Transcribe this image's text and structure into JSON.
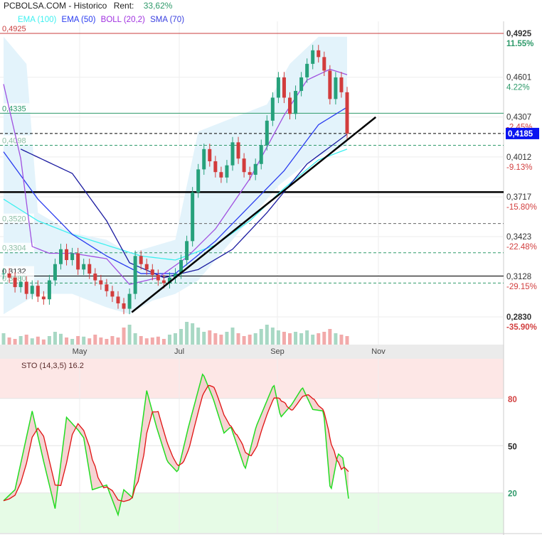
{
  "header": {
    "title": "PCBOLSA.COM - Historico",
    "rent_label": "Rent:",
    "rent_value": "33,62%"
  },
  "legend": [
    {
      "label": "EMA (100)",
      "color": "#3ef0f0"
    },
    {
      "label": "EMA (50)",
      "color": "#2a3cf0"
    },
    {
      "label": "BOLL (20,2)",
      "color": "#a030e0"
    },
    {
      "label": "SMA (70)",
      "color": "#3a40e0"
    }
  ],
  "price_axis": [
    {
      "price": "0,4925",
      "pct": "11.55%",
      "value": 0.4925,
      "pct_color": "#2e9a6a",
      "bold": true
    },
    {
      "price": "0,4601",
      "pct": "4.22%",
      "value": 0.4601,
      "pct_color": "#2e9a6a"
    },
    {
      "price": "0,4307",
      "pct": "-2.45%",
      "value": 0.4307,
      "pct_color": "#d24040"
    },
    {
      "price": "0,4012",
      "pct": "-9.13%",
      "value": 0.4012,
      "pct_color": "#d24040"
    },
    {
      "price": "0,3717",
      "pct": "-15.80%",
      "value": 0.3717,
      "pct_color": "#d24040"
    },
    {
      "price": "0,3423",
      "pct": "-22.48%",
      "value": 0.3423,
      "pct_color": "#d24040"
    },
    {
      "price": "0,3128",
      "pct": "-29.15%",
      "value": 0.3128,
      "pct_color": "#d24040"
    },
    {
      "price": "0,2830",
      "pct": "-35.90%",
      "value": 0.283,
      "pct_color": "#d24040",
      "bold": true
    }
  ],
  "current_price": {
    "label": "0,4185",
    "value": 0.4185,
    "color": "#0a14f0"
  },
  "levels": [
    {
      "label": "0,4925",
      "value": 0.4925,
      "style": "solid",
      "color": "#c83c3c",
      "label_color": "#c83c3c"
    },
    {
      "label": "0,4335",
      "value": 0.4335,
      "style": "solid",
      "color": "#2e9a6a",
      "label_color": "#2e9a6a"
    },
    {
      "label": "",
      "value": 0.4185,
      "style": "dashed",
      "color": "#000000"
    },
    {
      "label": "0,4098",
      "value": 0.4098,
      "style": "dashed",
      "color": "#2e9a6a",
      "label_color": "#8fbfa5"
    },
    {
      "label": "",
      "value": 0.3752,
      "style": "thick",
      "color": "#000000"
    },
    {
      "label": "0,3520",
      "value": 0.352,
      "style": "dashed",
      "color": "#666666",
      "label_color": "#8fbfa5"
    },
    {
      "label": "0,3304",
      "value": 0.3304,
      "style": "dashed",
      "color": "#2e9a6a",
      "label_color": "#8fbfa5"
    },
    {
      "label": "0,3132",
      "value": 0.3132,
      "style": "solid",
      "color": "#000000",
      "label_color": "#333333"
    },
    {
      "label": "0,3080",
      "value": 0.308,
      "style": "dashed",
      "color": "#2e9a6a",
      "label_color": "#8fbfa5"
    }
  ],
  "time_axis": [
    "May",
    "Jul",
    "Sep",
    "Nov"
  ],
  "chart_data": [
    {
      "type": "candlestick",
      "title": "PCBOLSA.COM - Historico",
      "ylim": [
        0.283,
        0.4925
      ],
      "grid": true,
      "closes": [
        0.315,
        0.312,
        0.305,
        0.309,
        0.3,
        0.306,
        0.298,
        0.296,
        0.31,
        0.322,
        0.333,
        0.325,
        0.33,
        0.318,
        0.322,
        0.315,
        0.31,
        0.307,
        0.302,
        0.298,
        0.293,
        0.289,
        0.3,
        0.328,
        0.322,
        0.318,
        0.314,
        0.31,
        0.308,
        0.312,
        0.315,
        0.325,
        0.339,
        0.375,
        0.392,
        0.407,
        0.398,
        0.39,
        0.386,
        0.395,
        0.412,
        0.4,
        0.39,
        0.388,
        0.396,
        0.41,
        0.428,
        0.445,
        0.46,
        0.445,
        0.433,
        0.45,
        0.46,
        0.47,
        0.48,
        0.475,
        0.465,
        0.444,
        0.46,
        0.449,
        0.4185
      ],
      "volume": [
        40,
        25,
        20,
        30,
        35,
        22,
        28,
        18,
        30,
        45,
        38,
        25,
        20,
        30,
        28,
        22,
        35,
        25,
        20,
        30,
        25,
        60,
        70,
        40,
        30,
        22,
        25,
        28,
        20,
        35,
        40,
        55,
        80,
        75,
        60,
        45,
        50,
        40,
        35,
        45,
        60,
        40,
        30,
        35,
        40,
        55,
        70,
        60,
        50,
        45,
        40,
        45,
        40,
        50,
        35,
        40,
        45,
        55,
        40,
        35,
        30
      ],
      "series": [
        {
          "name": "EMA (100)",
          "color": "#3ef0f0",
          "points": [
            [
              0,
              0.37
            ],
            [
              6,
              0.354
            ],
            [
              12,
              0.344
            ],
            [
              18,
              0.336
            ],
            [
              24,
              0.328
            ],
            [
              30,
              0.325
            ],
            [
              37,
              0.336
            ],
            [
              43,
              0.354
            ],
            [
              49,
              0.378
            ],
            [
              55,
              0.399
            ],
            [
              60,
              0.407
            ]
          ]
        },
        {
          "name": "EMA (50)",
          "color": "#2a3cf0",
          "points": [
            [
              0,
              0.405
            ],
            [
              6,
              0.37
            ],
            [
              12,
              0.344
            ],
            [
              18,
              0.328
            ],
            [
              24,
              0.315
            ],
            [
              30,
              0.315
            ],
            [
              37,
              0.339
            ],
            [
              43,
              0.365
            ],
            [
              49,
              0.391
            ],
            [
              55,
              0.425
            ],
            [
              60,
              0.438
            ]
          ]
        },
        {
          "name": "BOLL (20,2)",
          "color": "#a050e0",
          "points": [
            [
              0,
              0.455
            ],
            [
              3,
              0.4
            ],
            [
              5,
              0.335
            ],
            [
              8,
              0.33
            ],
            [
              12,
              0.33
            ],
            [
              18,
              0.326
            ],
            [
              22,
              0.307
            ],
            [
              27,
              0.312
            ],
            [
              32,
              0.327
            ],
            [
              37,
              0.348
            ],
            [
              43,
              0.385
            ],
            [
              49,
              0.432
            ],
            [
              53,
              0.458
            ],
            [
              57,
              0.466
            ],
            [
              60,
              0.462
            ]
          ]
        },
        {
          "name": "SMA (70)",
          "color": "#1a1aa0",
          "points": [
            [
              3,
              0.407
            ],
            [
              12,
              0.389
            ],
            [
              18,
              0.354
            ],
            [
              22,
              0.323
            ],
            [
              28,
              0.312
            ],
            [
              34,
              0.318
            ],
            [
              40,
              0.333
            ],
            [
              46,
              0.36
            ],
            [
              53,
              0.396
            ],
            [
              60,
              0.418
            ]
          ]
        }
      ],
      "boll_upper": [
        [
          0,
          0.49
        ],
        [
          4,
          0.47
        ],
        [
          6,
          0.36
        ],
        [
          12,
          0.345
        ],
        [
          18,
          0.34
        ],
        [
          22,
          0.33
        ],
        [
          26,
          0.335
        ],
        [
          30,
          0.34
        ],
        [
          34,
          0.42
        ],
        [
          40,
          0.43
        ],
        [
          46,
          0.44
        ],
        [
          50,
          0.47
        ],
        [
          55,
          0.49
        ],
        [
          60,
          0.49
        ]
      ],
      "boll_lower": [
        [
          0,
          0.285
        ],
        [
          6,
          0.3
        ],
        [
          12,
          0.3
        ],
        [
          18,
          0.29
        ],
        [
          22,
          0.285
        ],
        [
          26,
          0.295
        ],
        [
          30,
          0.3
        ],
        [
          34,
          0.31
        ],
        [
          38,
          0.33
        ],
        [
          44,
          0.36
        ],
        [
          48,
          0.38
        ],
        [
          54,
          0.4
        ],
        [
          60,
          0.41
        ]
      ],
      "trendline": [
        [
          22.4,
          0.2864
        ],
        [
          65,
          0.4306
        ]
      ]
    },
    {
      "type": "line",
      "title": "STO (14,3,5) 16.2",
      "ylim": [
        0,
        100
      ],
      "levels": [
        {
          "label": "80",
          "value": 80,
          "color": "#d24040"
        },
        {
          "label": "50",
          "value": 50,
          "color": "#222222"
        },
        {
          "label": "20",
          "value": 20,
          "color": "#2e9a6a"
        }
      ],
      "k": [
        [
          0,
          15
        ],
        [
          2,
          22
        ],
        [
          5,
          72
        ],
        [
          7,
          40
        ],
        [
          9,
          10
        ],
        [
          11,
          68
        ],
        [
          13,
          60
        ],
        [
          14,
          55
        ],
        [
          15.5,
          22
        ],
        [
          18,
          25
        ],
        [
          20,
          6
        ],
        [
          21,
          22
        ],
        [
          22.5,
          17
        ],
        [
          25,
          85
        ],
        [
          26.7,
          62
        ],
        [
          28.6,
          40
        ],
        [
          30.4,
          33
        ],
        [
          32.3,
          62
        ],
        [
          34.8,
          96
        ],
        [
          36.6,
          80
        ],
        [
          38.5,
          58
        ],
        [
          39.7,
          62
        ],
        [
          42.2,
          35
        ],
        [
          44.1,
          62
        ],
        [
          47.2,
          89
        ],
        [
          48.4,
          68
        ],
        [
          50.3,
          76
        ],
        [
          52.2,
          87
        ],
        [
          54,
          73
        ],
        [
          55.9,
          72
        ],
        [
          57.1,
          20
        ],
        [
          58.4,
          45
        ],
        [
          59.3,
          42
        ],
        [
          60.3,
          15
        ]
      ],
      "k_color": "#22dd22",
      "d_color": "#e01010"
    }
  ]
}
